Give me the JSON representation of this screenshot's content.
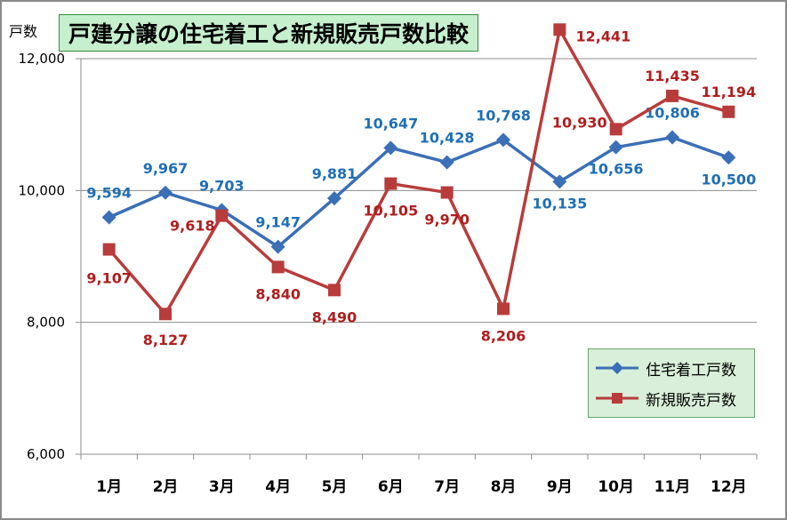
{
  "chart_data": {
    "type": "line",
    "title": "戸建分譲の住宅着工と新規販売戸数比較",
    "ylabel": "戸数",
    "xlabel": "",
    "categories": [
      "1月",
      "2月",
      "3月",
      "4月",
      "5月",
      "6月",
      "7月",
      "8月",
      "9月",
      "10月",
      "11月",
      "12月"
    ],
    "ylim": [
      6000,
      12000
    ],
    "yticks": [
      "6,000",
      "8,000",
      "10,000",
      "12,000"
    ],
    "grid": true,
    "legend_position": "bottom-right",
    "series": [
      {
        "name": "住宅着工戸数",
        "color": "#3b6fb6",
        "label_color": "#1f6fb5",
        "marker": "diamond",
        "values": [
          9594,
          9967,
          9703,
          9147,
          9881,
          10647,
          10428,
          10768,
          10135,
          10656,
          10806,
          10500
        ],
        "labels": [
          "9,594",
          "9,967",
          "9,703",
          "9,147",
          "9,881",
          "10,647",
          "10,428",
          "10,768",
          "10,135",
          "10,656",
          "10,806",
          "10,500"
        ]
      },
      {
        "name": "新規販売戸数",
        "color": "#b83c3c",
        "label_color": "#b01e1e",
        "marker": "square",
        "values": [
          9107,
          8127,
          9618,
          8840,
          8490,
          10105,
          9970,
          8206,
          12441,
          10930,
          11435,
          11194
        ],
        "labels": [
          "9,107",
          "8,127",
          "9,618",
          "8,840",
          "8,490",
          "10,105",
          "9,970",
          "8,206",
          "12,441",
          "10,930",
          "11,435",
          "11,194"
        ]
      }
    ]
  }
}
